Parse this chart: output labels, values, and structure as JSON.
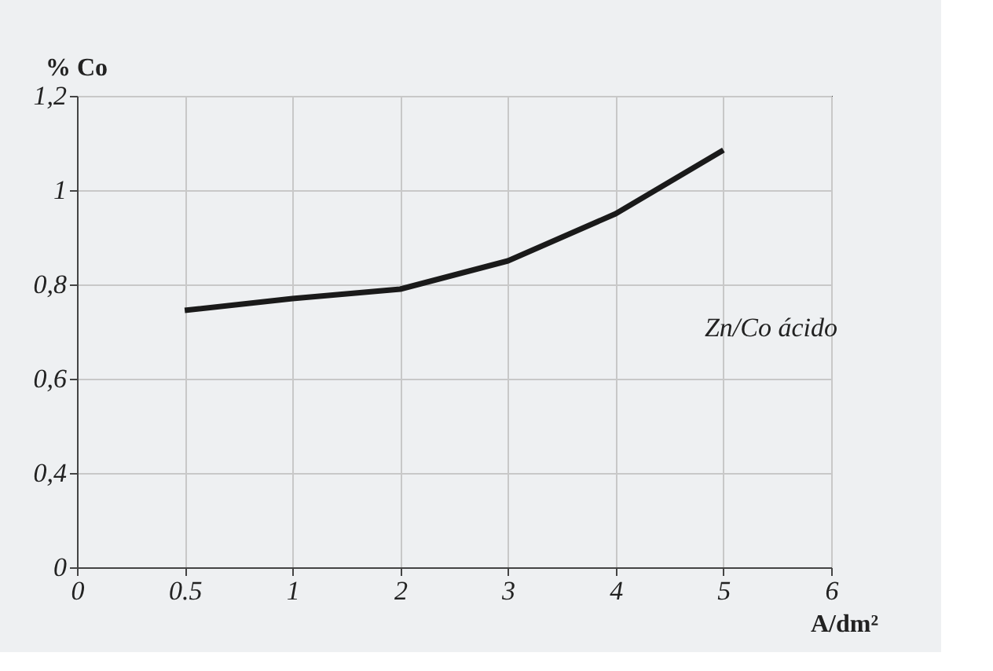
{
  "chart_data": {
    "type": "line",
    "ylabel": "% Co",
    "xlabel": "A/dm²",
    "categories": [
      "0",
      "0.5",
      "1",
      "2",
      "3",
      "4",
      "5",
      "6"
    ],
    "series": [
      {
        "color": "#1a1a1a",
        "values": [
          null,
          0.745,
          0.77,
          0.79,
          0.85,
          0.95,
          1.085,
          null
        ]
      }
    ],
    "ylim": [
      0.2,
      1.2
    ],
    "yticks": [
      {
        "value": 0.2,
        "label": "0"
      },
      {
        "value": 0.4,
        "label": "0,4"
      },
      {
        "value": 0.6,
        "label": "0,6"
      },
      {
        "value": 0.8,
        "label": "0,8"
      },
      {
        "value": 1,
        "label": "1"
      },
      {
        "value": 1.2,
        "label": "1,2"
      }
    ],
    "grid": true,
    "marker": "none",
    "line_style": "solid",
    "annotations": [
      "Zn/Co ácido"
    ]
  }
}
